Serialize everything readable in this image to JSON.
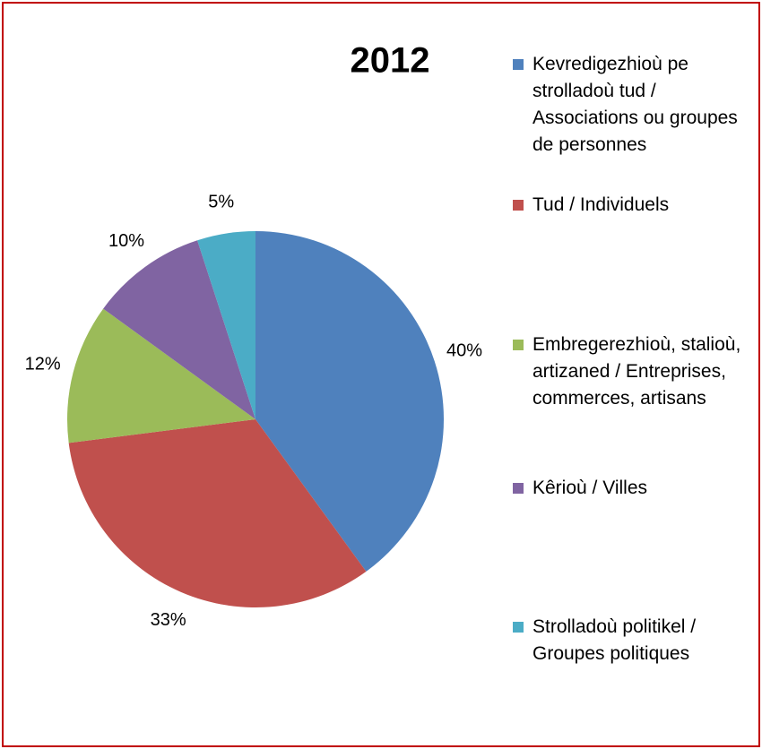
{
  "chart_data": {
    "type": "pie",
    "title": "2012",
    "categories": [
      "Kevredigezhioù pe strolladoù tud / Associations ou groupes de personnes",
      "Tud / Individuels",
      "Embregerezhioù, stalioù, artizaned / Entreprises, commerces, artisans",
      "Kêrioù / Villes",
      "Strolladoù politikel / Groupes politiques"
    ],
    "values": [
      40,
      33,
      12,
      10,
      5
    ],
    "value_labels": [
      "40%",
      "33%",
      "12%",
      "10%",
      "5%"
    ],
    "colors": [
      "#4f81bd",
      "#c0504d",
      "#9bbb59",
      "#8064a2",
      "#4bacc6"
    ],
    "legend": "right"
  }
}
